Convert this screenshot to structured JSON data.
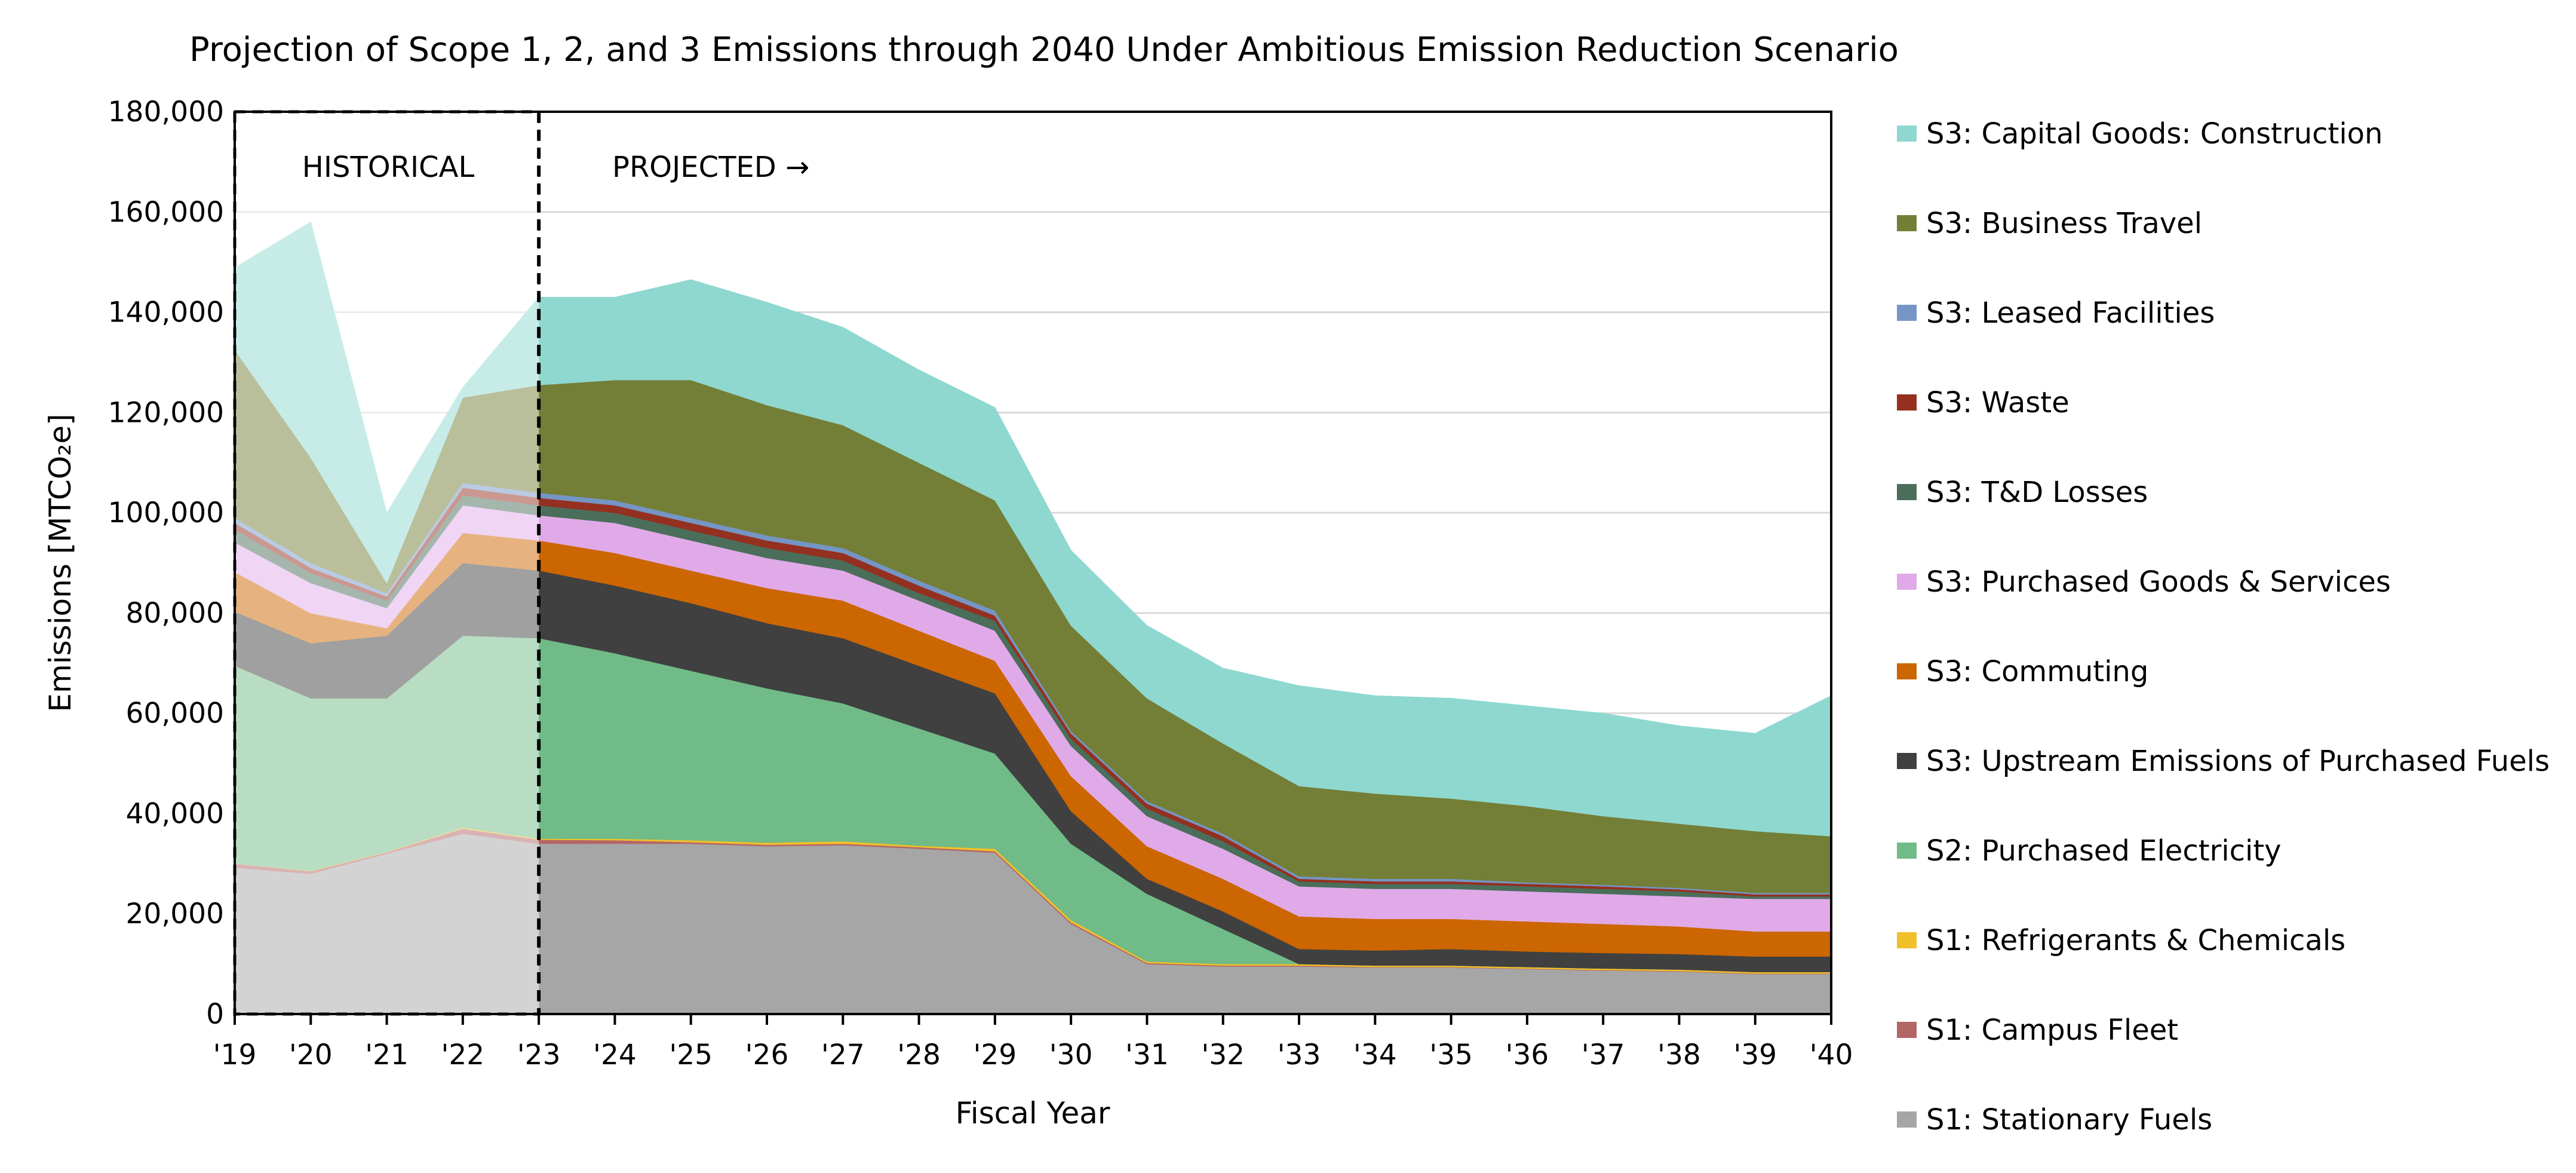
{
  "chart_data": {
    "type": "area",
    "stacked": true,
    "title": "Projection of Scope 1, 2, and 3 Emissions through 2040 Under Ambitious Emission Reduction Scenario",
    "xlabel": "Fiscal Year",
    "ylabel": "Emissions [MTCO₂e]",
    "ylim": [
      0,
      180000
    ],
    "yticks": [
      0,
      20000,
      40000,
      60000,
      80000,
      100000,
      120000,
      140000,
      160000,
      180000
    ],
    "ytick_labels": [
      "0",
      "20,000",
      "40,000",
      "60,000",
      "80,000",
      "100,000",
      "120,000",
      "140,000",
      "160,000",
      "180,000"
    ],
    "grid": "horizontal",
    "legend_position": "right",
    "annotations": {
      "historical": "HISTORICAL",
      "projected": "PROJECTED →"
    },
    "historical_shaded": true,
    "categories": [
      "'19",
      "'20",
      "'21",
      "'22",
      "'23",
      "'24",
      "'25",
      "'26",
      "'27",
      "'28",
      "'29",
      "'30",
      "'31",
      "'32",
      "'33",
      "'34",
      "'35",
      "'36",
      "'37",
      "'38",
      "'39",
      "'40"
    ],
    "series": [
      {
        "name": "S1: Stationary Fuels",
        "color": "#a6a6a6",
        "values": [
          29200,
          28000,
          32000,
          36000,
          34000,
          34000,
          34000,
          33500,
          33700,
          33000,
          32200,
          18000,
          10000,
          9500,
          9500,
          9300,
          9300,
          9000,
          8700,
          8500,
          8000,
          8000
        ]
      },
      {
        "name": "S1: Campus Fleet",
        "color": "#b36666",
        "values": [
          800,
          500,
          300,
          1000,
          800,
          700,
          300,
          300,
          300,
          300,
          300,
          300,
          200,
          200,
          200,
          100,
          100,
          100,
          100,
          100,
          100,
          100
        ]
      },
      {
        "name": "S1: Refrigerants & Chemicals",
        "color": "#f0c02a",
        "values": [
          0,
          100,
          100,
          200,
          200,
          300,
          400,
          400,
          500,
          300,
          500,
          500,
          300,
          300,
          300,
          300,
          300,
          300,
          300,
          300,
          300,
          300
        ]
      },
      {
        "name": "S2: Purchased Electricity",
        "color": "#70bb87",
        "values": [
          39500,
          34400,
          30600,
          38300,
          40000,
          37000,
          33800,
          30800,
          27500,
          23400,
          19000,
          15200,
          13500,
          7000,
          0,
          0,
          0,
          0,
          0,
          0,
          0,
          0
        ]
      },
      {
        "name": "S3: Upstream Emissions of Purchased Fuels",
        "color": "#404040",
        "values": [
          10800,
          11000,
          12500,
          14500,
          13500,
          13500,
          13500,
          13000,
          13000,
          12500,
          12000,
          6500,
          3000,
          3500,
          3000,
          3000,
          3300,
          3100,
          3100,
          3100,
          3100,
          3100
        ]
      },
      {
        "name": "S3: Commuting",
        "color": "#cc6600",
        "values": [
          7900,
          6000,
          1500,
          6000,
          6000,
          6500,
          6500,
          7000,
          7500,
          7000,
          6500,
          7000,
          6500,
          6500,
          6500,
          6300,
          6000,
          6000,
          5800,
          5500,
          5000,
          5000
        ]
      },
      {
        "name": "S3: Purchased Goods & Services",
        "color": "#e0aae8",
        "values": [
          5900,
          6000,
          4000,
          5500,
          5000,
          6000,
          6000,
          6000,
          6000,
          6000,
          6000,
          6000,
          6000,
          6000,
          6000,
          6000,
          6000,
          6000,
          6000,
          6000,
          6500,
          6500
        ]
      },
      {
        "name": "S3: T&D Losses",
        "color": "#4a6e5a",
        "values": [
          2600,
          2000,
          1500,
          2000,
          2000,
          2000,
          2000,
          2000,
          2000,
          1500,
          2000,
          1500,
          1500,
          1500,
          1000,
          1000,
          1000,
          1000,
          1000,
          1000,
          500,
          500
        ]
      },
      {
        "name": "S3: Waste",
        "color": "#943020",
        "values": [
          1300,
          1000,
          800,
          1500,
          1500,
          1500,
          1500,
          1500,
          1500,
          1500,
          1000,
          1000,
          1000,
          1000,
          500,
          500,
          500,
          500,
          500,
          400,
          400,
          400
        ]
      },
      {
        "name": "S3: Leased Facilities",
        "color": "#7595c4",
        "values": [
          1000,
          1000,
          700,
          1000,
          1000,
          1000,
          1000,
          1000,
          1000,
          1000,
          1000,
          500,
          500,
          500,
          500,
          500,
          500,
          300,
          300,
          300,
          300,
          300
        ]
      },
      {
        "name": "S3: Business Travel",
        "color": "#737f37",
        "values": [
          33500,
          21000,
          2000,
          17000,
          21500,
          24000,
          27500,
          26000,
          24500,
          23500,
          22000,
          21000,
          20500,
          18000,
          18000,
          17000,
          16000,
          15200,
          13700,
          12800,
          12300,
          11300
        ]
      },
      {
        "name": "S3: Capital Goods: Construction",
        "color": "#8fd8d0",
        "values": [
          16400,
          47000,
          14000,
          2000,
          17500,
          16500,
          20000,
          20500,
          19500,
          18500,
          18500,
          15000,
          14500,
          15000,
          20000,
          19500,
          20000,
          20000,
          20500,
          19500,
          19500,
          28000
        ]
      }
    ]
  }
}
